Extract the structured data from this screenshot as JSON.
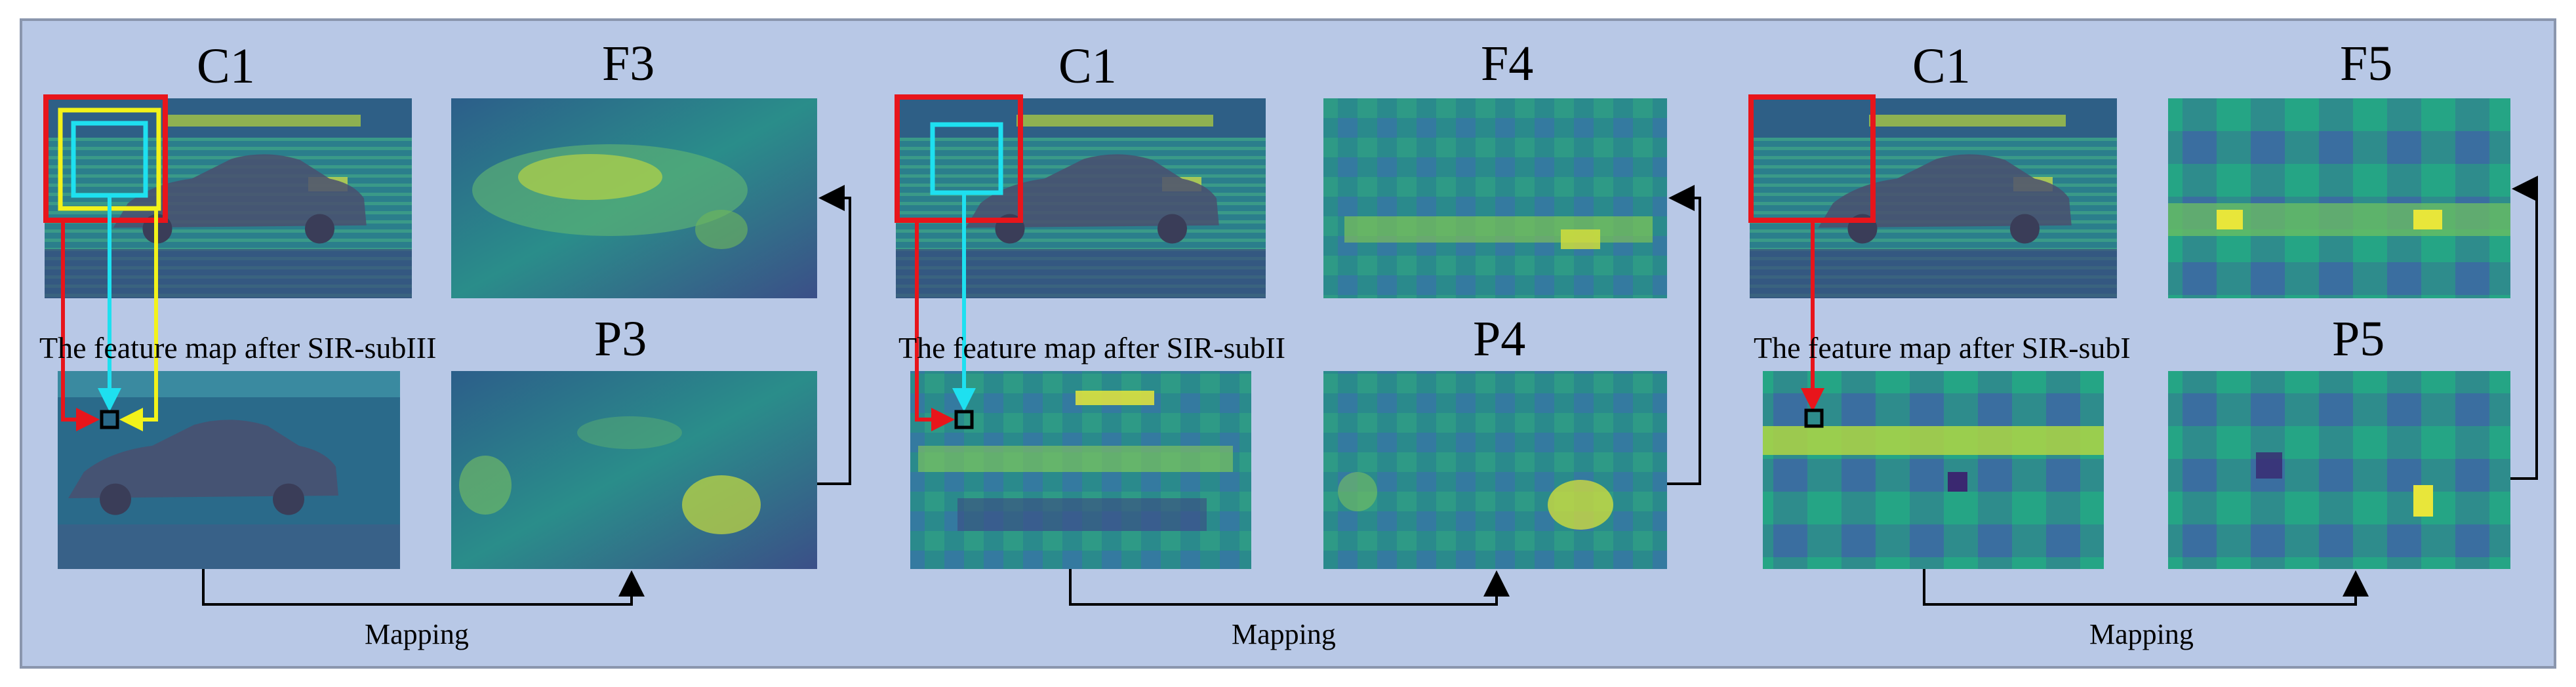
{
  "colors": {
    "background": "#b8c8e6",
    "red": "#e8151b",
    "cyan": "#1ee0f0",
    "yellow": "#f2f21a",
    "black": "#000000"
  },
  "groups": [
    {
      "c_label": "C1",
      "f_label": "F3",
      "p_label": "P3",
      "sub_caption": "The feature map after SIR-subIII",
      "mapping_label": "Mapping"
    },
    {
      "c_label": "C1",
      "f_label": "F4",
      "p_label": "P4",
      "sub_caption": "The feature map after SIR-subII",
      "mapping_label": "Mapping"
    },
    {
      "c_label": "C1",
      "f_label": "F5",
      "p_label": "P5",
      "sub_caption": "The feature map after SIR-subI",
      "mapping_label": "Mapping"
    }
  ]
}
